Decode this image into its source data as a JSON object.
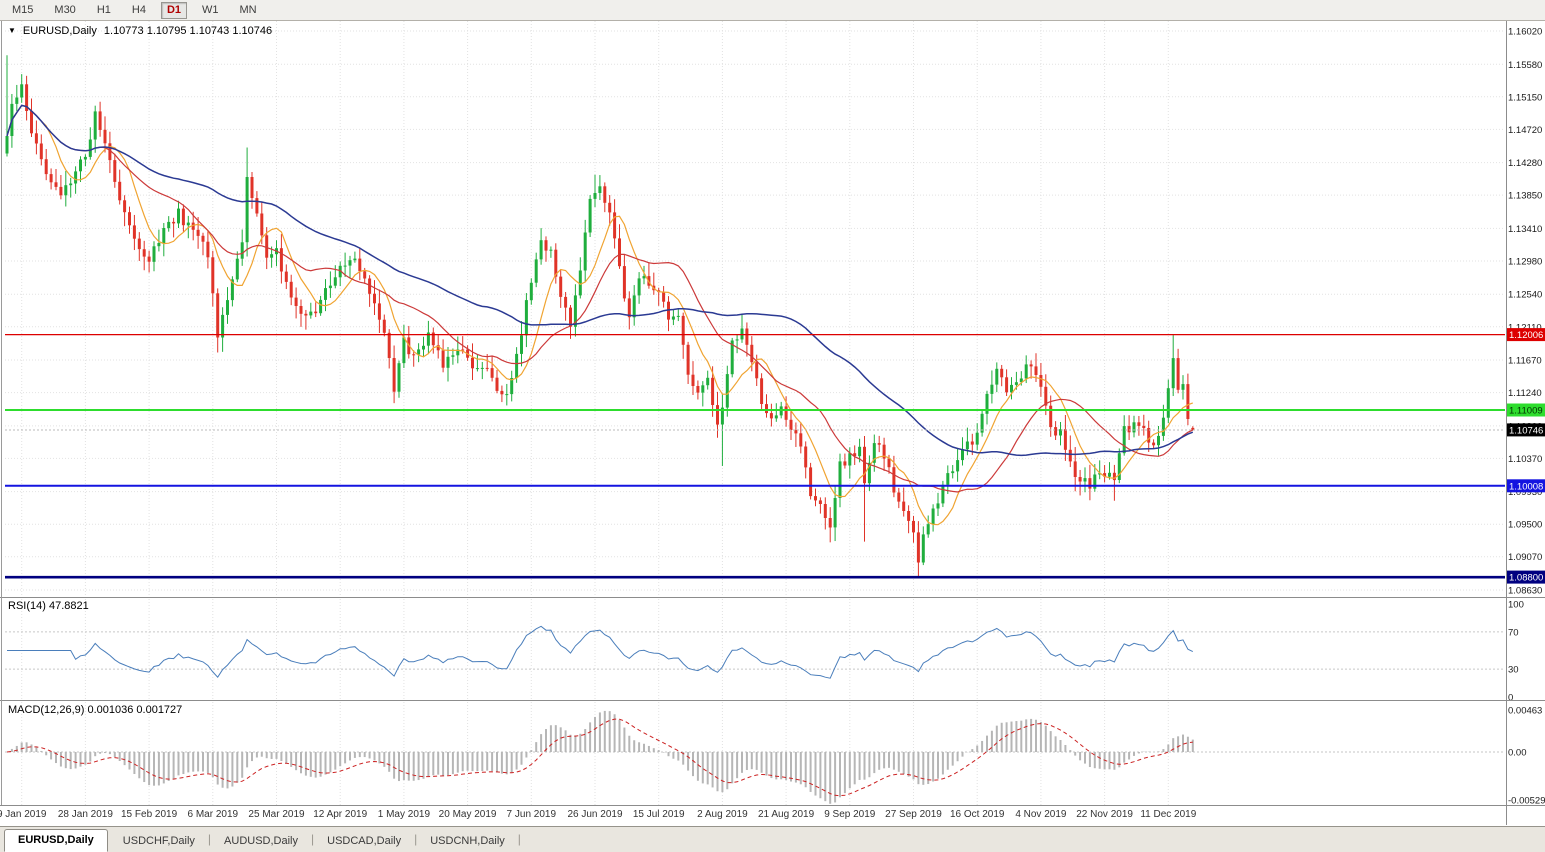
{
  "toolbar": {
    "timeframes": [
      {
        "label": "M15",
        "selected": false
      },
      {
        "label": "M30",
        "selected": false
      },
      {
        "label": "H1",
        "selected": false
      },
      {
        "label": "H4",
        "selected": false
      },
      {
        "label": "D1",
        "selected": true
      },
      {
        "label": "W1",
        "selected": false
      },
      {
        "label": "MN",
        "selected": false
      }
    ]
  },
  "chart_header": {
    "title": "EURUSD,Daily",
    "ohlc": "1.10773 1.10795 1.10743 1.10746"
  },
  "tabs": {
    "items": [
      {
        "label": "EURUSD,Daily",
        "active": true
      },
      {
        "label": "USDCHF,Daily",
        "active": false
      },
      {
        "label": "AUDUSD,Daily",
        "active": false
      },
      {
        "label": "USDCAD,Daily",
        "active": false
      },
      {
        "label": "USDCNH,Daily",
        "active": false
      }
    ]
  },
  "chart_data": {
    "type": "candlestick",
    "symbol": "EURUSD",
    "timeframe": "Daily",
    "open": 1.10773,
    "high": 1.10795,
    "low": 1.10743,
    "close": 1.10746,
    "current_price": 1.10746,
    "total_bars": 243,
    "price_ticks": [
      1.1602,
      1.1558,
      1.1515,
      1.1472,
      1.1428,
      1.1385,
      1.1341,
      1.1298,
      1.1254,
      1.1211,
      1.1167,
      1.1124,
      1.108,
      1.1037,
      1.0993,
      1.095,
      1.0907,
      1.0863
    ],
    "x_labels": [
      "9 Jan 2019",
      "28 Jan 2019",
      "15 Feb 2019",
      "6 Mar 2019",
      "25 Mar 2019",
      "12 Apr 2019",
      "1 May 2019",
      "20 May 2019",
      "7 Jun 2019",
      "26 Jun 2019",
      "15 Jul 2019",
      "2 Aug 2019",
      "21 Aug 2019",
      "9 Sep 2019",
      "27 Sep 2019",
      "16 Oct 2019",
      "4 Nov 2019",
      "22 Nov 2019",
      "11 Dec 2019"
    ],
    "hlines": [
      {
        "price": 1.12006,
        "color": "#dd0000",
        "width": 1.2,
        "label": "1.12006",
        "text_color": "#ffffff"
      },
      {
        "price": 1.11009,
        "color": "#2ddd2d",
        "width": 2,
        "label": "1.11009",
        "text_color": "#003300"
      },
      {
        "price": 1.10008,
        "color": "#1414e0",
        "width": 2,
        "label": "1.10008",
        "text_color": "#ffffff"
      },
      {
        "price": 1.088,
        "color": "#000080",
        "width": 2.6,
        "label": "1.08800",
        "text_color": "#ffffff"
      }
    ],
    "colors": {
      "up": "#1fae3d",
      "down": "#e03328",
      "ma_fast": "#f0a432",
      "ma_mid": "#cc3a3a",
      "ma_slow": "#2b3a93",
      "grid": "#e2e2e2",
      "rsi": "#4a7ebb",
      "macd_hist": "#b6b6b6",
      "macd_signal": "#cc2222",
      "current_price_line": "#bbbbbb",
      "current_badge": "#000000"
    },
    "anchors": [
      [
        0,
        1.146
      ],
      [
        1,
        1.15
      ],
      [
        3,
        1.153
      ],
      [
        5,
        1.147
      ],
      [
        8,
        1.1415
      ],
      [
        11,
        1.1385
      ],
      [
        14,
        1.142
      ],
      [
        16,
        1.1435
      ],
      [
        18,
        1.1495
      ],
      [
        20,
        1.1455
      ],
      [
        23,
        1.138
      ],
      [
        26,
        1.133
      ],
      [
        29,
        1.13
      ],
      [
        32,
        1.134
      ],
      [
        35,
        1.136
      ],
      [
        38,
        1.1335
      ],
      [
        41,
        1.131
      ],
      [
        43,
        1.12
      ],
      [
        45,
        1.1245
      ],
      [
        48,
        1.132
      ],
      [
        49,
        1.1415
      ],
      [
        51,
        1.1355
      ],
      [
        53,
        1.13
      ],
      [
        55,
        1.131
      ],
      [
        57,
        1.127
      ],
      [
        60,
        1.1225
      ],
      [
        63,
        1.1235
      ],
      [
        66,
        1.1265
      ],
      [
        69,
        1.1295
      ],
      [
        71,
        1.1305
      ],
      [
        74,
        1.1255
      ],
      [
        77,
        1.1195
      ],
      [
        79,
        1.113
      ],
      [
        81,
        1.119
      ],
      [
        83,
        1.117
      ],
      [
        86,
        1.1205
      ],
      [
        89,
        1.116
      ],
      [
        92,
        1.1185
      ],
      [
        94,
        1.1165
      ],
      [
        97,
        1.116
      ],
      [
        100,
        1.113
      ],
      [
        102,
        1.1125
      ],
      [
        104,
        1.1175
      ],
      [
        107,
        1.127
      ],
      [
        109,
        1.1325
      ],
      [
        111,
        1.1305
      ],
      [
        113,
        1.1245
      ],
      [
        115,
        1.1215
      ],
      [
        117,
        1.129
      ],
      [
        119,
        1.138
      ],
      [
        121,
        1.139
      ],
      [
        123,
        1.136
      ],
      [
        125,
        1.1285
      ],
      [
        127,
        1.1225
      ],
      [
        129,
        1.128
      ],
      [
        131,
        1.127
      ],
      [
        133,
        1.126
      ],
      [
        135,
        1.1215
      ],
      [
        137,
        1.123
      ],
      [
        139,
        1.1155
      ],
      [
        141,
        1.1125
      ],
      [
        143,
        1.1145
      ],
      [
        145,
        1.1075
      ],
      [
        146,
        1.111
      ],
      [
        148,
        1.1195
      ],
      [
        150,
        1.1205
      ],
      [
        152,
        1.117
      ],
      [
        154,
        1.1105
      ],
      [
        156,
        1.109
      ],
      [
        158,
        1.11
      ],
      [
        160,
        1.1075
      ],
      [
        162,
        1.1055
      ],
      [
        164,
        1.0995
      ],
      [
        166,
        1.0975
      ],
      [
        168,
        1.094
      ],
      [
        170,
        1.103
      ],
      [
        172,
        1.104
      ],
      [
        174,
        1.1055
      ],
      [
        175,
        1.1005
      ],
      [
        177,
        1.1065
      ],
      [
        179,
        1.104
      ],
      [
        181,
        1.0995
      ],
      [
        183,
        1.0965
      ],
      [
        185,
        1.0935
      ],
      [
        186,
        1.0905
      ],
      [
        188,
        1.0955
      ],
      [
        190,
        1.0985
      ],
      [
        192,
        1.1015
      ],
      [
        194,
        1.1035
      ],
      [
        196,
        1.1055
      ],
      [
        198,
        1.107
      ],
      [
        200,
        1.112
      ],
      [
        202,
        1.115
      ],
      [
        204,
        1.1125
      ],
      [
        206,
        1.114
      ],
      [
        208,
        1.116
      ],
      [
        210,
        1.115
      ],
      [
        211,
        1.113
      ],
      [
        213,
        1.1075
      ],
      [
        215,
        1.107
      ],
      [
        217,
        1.103
      ],
      [
        219,
        1.101
      ],
      [
        221,
        1.1
      ],
      [
        222,
        1.101
      ],
      [
        224,
        1.1015
      ],
      [
        226,
        1.1005
      ],
      [
        228,
        1.1075
      ],
      [
        230,
        1.108
      ],
      [
        232,
        1.1075
      ],
      [
        234,
        1.1055
      ],
      [
        236,
        1.1085
      ],
      [
        237,
        1.113
      ],
      [
        238,
        1.1175
      ],
      [
        239,
        1.112
      ],
      [
        240,
        1.114
      ],
      [
        241,
        1.109
      ],
      [
        242,
        1.10746
      ]
    ],
    "specials": [
      {
        "i": 0,
        "h": 1.157
      },
      {
        "i": 3,
        "h": 1.1545
      },
      {
        "i": 43,
        "l": 1.1177
      },
      {
        "i": 49,
        "h": 1.1448
      },
      {
        "i": 79,
        "l": 1.111
      },
      {
        "i": 102,
        "l": 1.1107
      },
      {
        "i": 120,
        "h": 1.1412
      },
      {
        "i": 146,
        "l": 1.1027
      },
      {
        "i": 168,
        "l": 1.0926
      },
      {
        "i": 175,
        "l": 1.0927
      },
      {
        "i": 186,
        "l": 1.0879
      },
      {
        "i": 219,
        "l": 1.0989
      },
      {
        "i": 226,
        "l": 1.0981
      },
      {
        "i": 238,
        "h": 1.12
      }
    ],
    "indicators": {
      "ma_periods": [
        8,
        20,
        55
      ],
      "rsi": {
        "label": "RSI(14) 47.8821",
        "period": 14,
        "value": 47.8821,
        "levels": [
          "100",
          "70",
          "30",
          "0"
        ]
      },
      "macd": {
        "label": "MACD(12,26,9) 0.001036 0.001727",
        "fast": 12,
        "slow": 26,
        "signal": 9,
        "value": 0.001036,
        "signal_value": 0.001727,
        "ticks": [
          "0.00463",
          "0.00",
          "-0.00529"
        ]
      }
    }
  }
}
